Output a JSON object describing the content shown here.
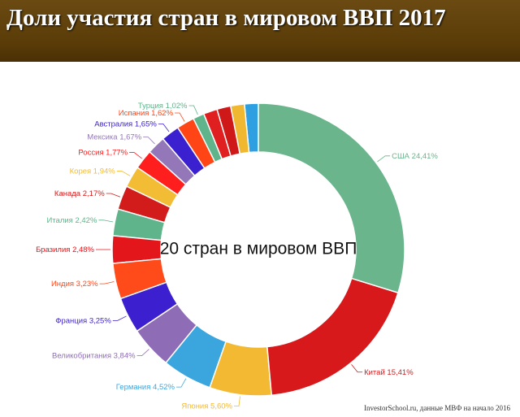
{
  "chart_data": {
    "type": "donut",
    "title": "Доли участия стран в мировом ВВП 2017",
    "center_label": "20 стран в мировом ВВП",
    "source": "InvestorSchool.ru, данные МВФ на начало 2016",
    "categories": [
      "США",
      "Китай",
      "Япония",
      "Германия",
      "Великобритания",
      "Франция",
      "Индия",
      "Бразилия",
      "Италия",
      "Канада",
      "Корея",
      "Россия",
      "Мексика",
      "Австралия",
      "Испания",
      "Турция",
      null,
      null,
      null,
      null
    ],
    "values": [
      24.41,
      15.41,
      5.6,
      4.52,
      3.84,
      3.25,
      3.23,
      2.48,
      2.42,
      2.17,
      1.94,
      1.77,
      1.67,
      1.65,
      1.62,
      1.02,
      1.25,
      1.25,
      1.25,
      1.25
    ],
    "value_labels": [
      "24,41%",
      "15,41%",
      "5,60%",
      "4,52%",
      "3,84%",
      "3,25%",
      "3,23%",
      "2,48%",
      "2,42%",
      "2,17%",
      "1,94%",
      "1,77%",
      "1,67%",
      "1,65%",
      "1,62%",
      "1,02%",
      null,
      null,
      null,
      null
    ],
    "colors": [
      "#6ab58c",
      "#d7191c",
      "#f3b932",
      "#3ba6de",
      "#8e6cb6",
      "#3c1fcf",
      "#ff4a1a",
      "#e2161b",
      "#5fb48b",
      "#d21b1b",
      "#f2bd35",
      "#ff1e1e",
      "#9477b8",
      "#3b20d0",
      "#ff4516",
      "#5fb48b",
      "#e02020",
      "#cf1818",
      "#f0b830",
      "#2e9fe0"
    ]
  }
}
